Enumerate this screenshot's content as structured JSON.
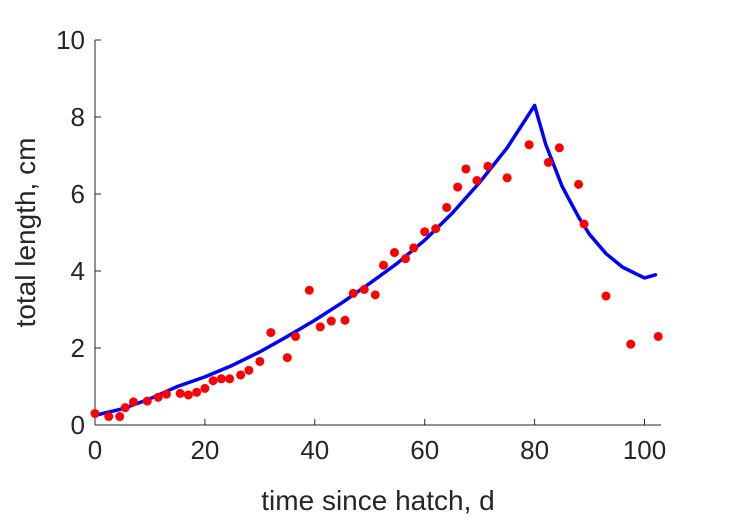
{
  "chart_data": {
    "type": "scatter",
    "title": "",
    "xlabel": "time since hatch, d",
    "ylabel": "total length, cm",
    "xlim": [
      0,
      103
    ],
    "ylim": [
      0,
      10
    ],
    "xticks": [
      0,
      20,
      40,
      60,
      80,
      100
    ],
    "yticks": [
      0,
      2,
      4,
      6,
      8,
      10
    ],
    "grid": false,
    "legend": "none",
    "colors": {
      "line": "#0000ff",
      "points": "#ff0000",
      "axis": "#262626"
    },
    "series": [
      {
        "kind": "line",
        "x": [
          0,
          5,
          10,
          15,
          20,
          25,
          30,
          35,
          40,
          45,
          50,
          55,
          60,
          65,
          70,
          75,
          80,
          82,
          85,
          88,
          90,
          93,
          96,
          100,
          102
        ],
        "y": [
          0.25,
          0.42,
          0.68,
          1.0,
          1.25,
          1.55,
          1.9,
          2.3,
          2.72,
          3.18,
          3.68,
          4.2,
          4.8,
          5.5,
          6.3,
          7.2,
          8.3,
          7.3,
          6.2,
          5.4,
          4.95,
          4.45,
          4.1,
          3.82,
          3.9
        ]
      },
      {
        "kind": "scatter",
        "x": [
          0,
          2.5,
          4.5,
          5.5,
          7,
          9.5,
          11.5,
          13,
          15.5,
          17,
          18.5,
          20,
          21.5,
          23,
          24.5,
          26.5,
          28,
          30,
          32,
          35,
          36.5,
          39,
          41,
          43,
          45.5,
          47,
          49,
          51,
          52.5,
          54.5,
          56.5,
          58,
          60,
          62,
          64,
          66,
          67.5,
          69.5,
          71.5,
          75,
          79,
          82.5,
          84.5,
          88,
          89,
          93,
          97.5,
          102.5
        ],
        "y": [
          0.3,
          0.22,
          0.22,
          0.45,
          0.6,
          0.62,
          0.72,
          0.8,
          0.82,
          0.78,
          0.85,
          0.95,
          1.15,
          1.2,
          1.2,
          1.3,
          1.42,
          1.65,
          2.4,
          1.75,
          2.3,
          3.5,
          2.55,
          2.7,
          2.72,
          3.42,
          3.52,
          3.38,
          4.15,
          4.48,
          4.32,
          4.6,
          5.02,
          5.1,
          5.65,
          6.18,
          6.65,
          6.35,
          6.72,
          6.42,
          7.28,
          6.82,
          7.2,
          6.25,
          5.22,
          3.35,
          2.1,
          2.3
        ]
      }
    ]
  }
}
